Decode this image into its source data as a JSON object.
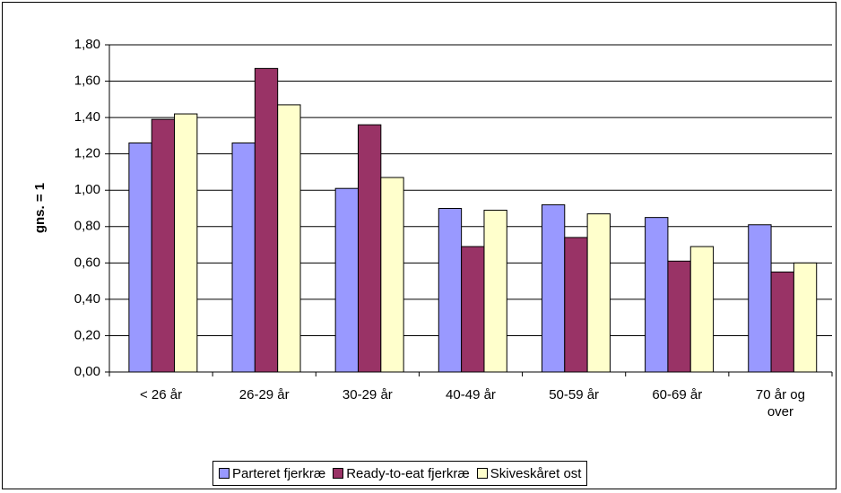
{
  "chart_data": {
    "type": "bar",
    "y_label": "gns. = 1",
    "categories": [
      "< 26 år",
      "26-29 år",
      "30-29 år",
      "40-49 år",
      "50-59 år",
      "60-69 år",
      "70 år og over"
    ],
    "series": [
      {
        "name": "Parteret fjerkræ",
        "color": "#9999ff",
        "values": [
          1.26,
          1.26,
          1.01,
          0.9,
          0.92,
          0.85,
          0.81
        ]
      },
      {
        "name": "Ready-to-eat fjerkræ",
        "color": "#993366",
        "values": [
          1.39,
          1.67,
          1.36,
          0.69,
          0.74,
          0.61,
          0.55
        ]
      },
      {
        "name": "Skiveskåret ost",
        "color": "#ffffcc",
        "values": [
          1.42,
          1.47,
          1.07,
          0.89,
          0.87,
          0.69,
          0.6
        ]
      }
    ],
    "ylim": [
      0,
      1.8
    ],
    "yticks": [
      {
        "value": 0,
        "label": "0,00"
      },
      {
        "value": 0.2,
        "label": "0,20"
      },
      {
        "value": 0.4,
        "label": "0,40"
      },
      {
        "value": 0.6,
        "label": "0,60"
      },
      {
        "value": 0.8,
        "label": "0,80"
      },
      {
        "value": 1.0,
        "label": "1,00"
      },
      {
        "value": 1.2,
        "label": "1,20"
      },
      {
        "value": 1.4,
        "label": "1,40"
      },
      {
        "value": 1.6,
        "label": "1,60"
      },
      {
        "value": 1.8,
        "label": "1,80"
      }
    ],
    "grid": true,
    "legend": "bottom"
  }
}
